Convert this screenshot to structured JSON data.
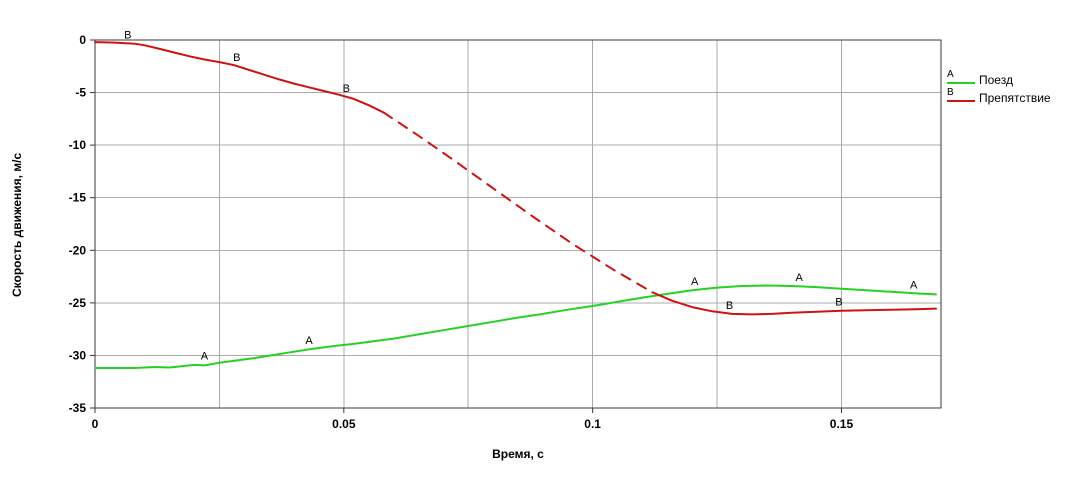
{
  "chart_data": {
    "type": "line",
    "title": "",
    "xlabel": "Время, с",
    "ylabel": "Скорость движения, м/с",
    "xlim": [
      0,
      0.17
    ],
    "ylim": [
      -35,
      0
    ],
    "grid": true,
    "grid_color": "#ababab",
    "axis_color": "#3a3a3a",
    "x_ticks": [
      {
        "v": 0,
        "label": "0"
      },
      {
        "v": 0.05,
        "label": "0.05"
      },
      {
        "v": 0.1,
        "label": "0.1"
      },
      {
        "v": 0.15,
        "label": "0.15"
      }
    ],
    "x_grid": [
      0.025,
      0.05,
      0.075,
      0.1,
      0.125,
      0.15
    ],
    "y_ticks": [
      {
        "v": 0,
        "label": "0"
      },
      {
        "v": -5,
        "label": "-5"
      },
      {
        "v": -10,
        "label": "-10"
      },
      {
        "v": -15,
        "label": "-15"
      },
      {
        "v": -20,
        "label": "-20"
      },
      {
        "v": -25,
        "label": "-25"
      },
      {
        "v": -30,
        "label": "-30"
      },
      {
        "v": -35,
        "label": "-35"
      }
    ],
    "y_grid": [
      -5,
      -10,
      -15,
      -20,
      -25,
      -30
    ],
    "series": [
      {
        "name": "Поезд",
        "marker": "A",
        "color": "#25d125",
        "segments": [
          {
            "style": "solid",
            "points": [
              [
                0,
                -31.2
              ],
              [
                0.004,
                -31.2
              ],
              [
                0.008,
                -31.2
              ],
              [
                0.012,
                -31.1
              ],
              [
                0.015,
                -31.15
              ],
              [
                0.018,
                -31.0
              ],
              [
                0.02,
                -30.9
              ],
              [
                0.022,
                -30.95
              ],
              [
                0.025,
                -30.7
              ],
              [
                0.028,
                -30.5
              ],
              [
                0.032,
                -30.25
              ],
              [
                0.036,
                -29.95
              ],
              [
                0.04,
                -29.65
              ],
              [
                0.044,
                -29.35
              ],
              [
                0.048,
                -29.1
              ],
              [
                0.052,
                -28.9
              ],
              [
                0.056,
                -28.65
              ],
              [
                0.06,
                -28.4
              ],
              [
                0.065,
                -28.0
              ],
              [
                0.07,
                -27.6
              ],
              [
                0.075,
                -27.2
              ],
              [
                0.08,
                -26.8
              ],
              [
                0.085,
                -26.4
              ],
              [
                0.09,
                -26.05
              ],
              [
                0.095,
                -25.65
              ],
              [
                0.1,
                -25.3
              ],
              [
                0.105,
                -24.9
              ],
              [
                0.11,
                -24.5
              ],
              [
                0.115,
                -24.15
              ],
              [
                0.12,
                -23.8
              ],
              [
                0.125,
                -23.55
              ],
              [
                0.13,
                -23.4
              ],
              [
                0.135,
                -23.35
              ],
              [
                0.14,
                -23.4
              ],
              [
                0.145,
                -23.5
              ],
              [
                0.15,
                -23.65
              ],
              [
                0.155,
                -23.8
              ],
              [
                0.16,
                -23.95
              ],
              [
                0.165,
                -24.1
              ],
              [
                0.169,
                -24.2
              ]
            ]
          }
        ],
        "marker_points": [
          [
            0.022,
            -30.85
          ],
          [
            0.043,
            -29.4
          ],
          [
            0.1205,
            -23.8
          ],
          [
            0.1415,
            -23.4
          ],
          [
            0.1645,
            -24.1
          ]
        ]
      },
      {
        "name": "Препятствие",
        "marker": "B",
        "color": "#cf1212",
        "segments": [
          {
            "style": "solid",
            "points": [
              [
                0,
                -0.2
              ],
              [
                0.004,
                -0.25
              ],
              [
                0.008,
                -0.35
              ],
              [
                0.01,
                -0.5
              ],
              [
                0.013,
                -0.85
              ],
              [
                0.016,
                -1.2
              ],
              [
                0.019,
                -1.55
              ],
              [
                0.022,
                -1.85
              ],
              [
                0.025,
                -2.1
              ],
              [
                0.028,
                -2.4
              ],
              [
                0.031,
                -2.85
              ],
              [
                0.034,
                -3.3
              ],
              [
                0.037,
                -3.75
              ],
              [
                0.04,
                -4.15
              ],
              [
                0.043,
                -4.5
              ],
              [
                0.046,
                -4.85
              ],
              [
                0.049,
                -5.2
              ],
              [
                0.052,
                -5.6
              ],
              [
                0.055,
                -6.2
              ],
              [
                0.058,
                -6.9
              ]
            ]
          },
          {
            "style": "dashed",
            "points": [
              [
                0.058,
                -6.9
              ],
              [
                0.065,
                -9.1
              ],
              [
                0.072,
                -11.4
              ],
              [
                0.08,
                -14.1
              ],
              [
                0.088,
                -16.8
              ],
              [
                0.096,
                -19.4
              ],
              [
                0.104,
                -21.8
              ],
              [
                0.112,
                -24.0
              ]
            ]
          },
          {
            "style": "solid",
            "points": [
              [
                0.112,
                -24.0
              ],
              [
                0.116,
                -24.8
              ],
              [
                0.12,
                -25.4
              ],
              [
                0.124,
                -25.8
              ],
              [
                0.128,
                -26.05
              ],
              [
                0.132,
                -26.1
              ],
              [
                0.136,
                -26.05
              ],
              [
                0.14,
                -25.95
              ],
              [
                0.145,
                -25.85
              ],
              [
                0.15,
                -25.75
              ],
              [
                0.155,
                -25.7
              ],
              [
                0.16,
                -25.65
              ],
              [
                0.165,
                -25.6
              ],
              [
                0.169,
                -25.55
              ]
            ]
          }
        ],
        "marker_points": [
          [
            0.0066,
            -0.35
          ],
          [
            0.0285,
            -2.45
          ],
          [
            0.0505,
            -5.4
          ],
          [
            0.1275,
            -26.05
          ],
          [
            0.1495,
            -25.75
          ]
        ]
      }
    ],
    "legend": {
      "position": "right",
      "items": [
        {
          "marker": "A",
          "label": "Поезд",
          "color": "#25d125"
        },
        {
          "marker": "B",
          "label": "Препятствие",
          "color": "#cf1212"
        }
      ]
    }
  }
}
